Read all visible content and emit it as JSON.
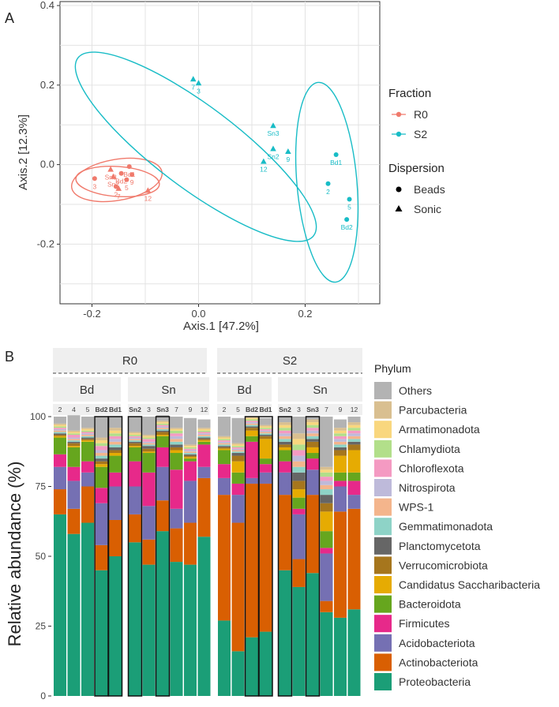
{
  "panelA": {
    "label": "A",
    "chart_data": {
      "type": "scatter",
      "title": "",
      "xlabel": "Axis.1   [47.2%]",
      "ylabel": "Axis.2   [12.3%]",
      "xlim": [
        -0.26,
        0.34
      ],
      "ylim": [
        -0.35,
        0.41
      ],
      "xticks": [
        -0.2,
        0.0,
        0.2
      ],
      "xtick_labels": [
        "-0.2",
        "0.0",
        "0.2"
      ],
      "yticks": [
        -0.2,
        0.0,
        0.2,
        0.4
      ],
      "ytick_labels": [
        "-0.2",
        "0.0",
        "0.2",
        "0.4"
      ],
      "grid": true,
      "colors": {
        "R0": "#F07A6C",
        "S2": "#18BCC6"
      },
      "points": [
        {
          "x": -0.195,
          "y": -0.035,
          "fraction": "R0",
          "dispersion": "Beads",
          "label": "3"
        },
        {
          "x": -0.155,
          "y": -0.055,
          "fraction": "R0",
          "dispersion": "Beads",
          "label": "2"
        },
        {
          "x": -0.13,
          "y": -0.005,
          "fraction": "R0",
          "dispersion": "Beads",
          "label": "Bd1"
        },
        {
          "x": -0.145,
          "y": -0.022,
          "fraction": "R0",
          "dispersion": "Beads",
          "label": "Bd2"
        },
        {
          "x": -0.135,
          "y": -0.038,
          "fraction": "R0",
          "dispersion": "Beads",
          "label": "5"
        },
        {
          "x": -0.125,
          "y": -0.025,
          "fraction": "R0",
          "dispersion": "Beads",
          "label": "9"
        },
        {
          "x": -0.165,
          "y": -0.012,
          "fraction": "R0",
          "dispersion": "Sonic",
          "label": "Sn3"
        },
        {
          "x": -0.16,
          "y": -0.03,
          "fraction": "R0",
          "dispersion": "Sonic",
          "label": "Sn2"
        },
        {
          "x": -0.15,
          "y": -0.06,
          "fraction": "R0",
          "dispersion": "Sonic",
          "label": "7"
        },
        {
          "x": -0.095,
          "y": -0.065,
          "fraction": "R0",
          "dispersion": "Sonic",
          "label": "12"
        },
        {
          "x": -0.01,
          "y": 0.215,
          "fraction": "S2",
          "dispersion": "Sonic",
          "label": "7"
        },
        {
          "x": 0.0,
          "y": 0.205,
          "fraction": "S2",
          "dispersion": "Sonic",
          "label": "3"
        },
        {
          "x": 0.14,
          "y": 0.098,
          "fraction": "S2",
          "dispersion": "Sonic",
          "label": "Sn3"
        },
        {
          "x": 0.14,
          "y": 0.04,
          "fraction": "S2",
          "dispersion": "Sonic",
          "label": "Sn2"
        },
        {
          "x": 0.168,
          "y": 0.033,
          "fraction": "S2",
          "dispersion": "Sonic",
          "label": "9"
        },
        {
          "x": 0.122,
          "y": 0.008,
          "fraction": "S2",
          "dispersion": "Sonic",
          "label": "12"
        },
        {
          "x": 0.258,
          "y": 0.025,
          "fraction": "S2",
          "dispersion": "Beads",
          "label": "Bd1"
        },
        {
          "x": 0.243,
          "y": -0.048,
          "fraction": "S2",
          "dispersion": "Beads",
          "label": "2"
        },
        {
          "x": 0.283,
          "y": -0.087,
          "fraction": "S2",
          "dispersion": "Beads",
          "label": "5"
        },
        {
          "x": 0.278,
          "y": -0.138,
          "fraction": "S2",
          "dispersion": "Beads",
          "label": "Bd2"
        }
      ],
      "ellipses": [
        {
          "group": "R0",
          "ellipse": "outer"
        },
        {
          "group": "R0",
          "ellipse": "inner"
        },
        {
          "group": "S2",
          "ellipse": "large"
        },
        {
          "group": "S2",
          "ellipse": "small"
        }
      ],
      "legend": {
        "placement": "right",
        "fraction_title": "Fraction",
        "fraction_items": [
          "R0",
          "S2"
        ],
        "dispersion_title": "Dispersion",
        "dispersion_items": [
          "Beads",
          "Sonic"
        ]
      }
    }
  },
  "panelB": {
    "label": "B",
    "chart_data": {
      "type": "bar",
      "stacked": true,
      "ylabel": "Relative abundance (%)",
      "ylim": [
        0,
        100
      ],
      "yticks": [
        0,
        25,
        50,
        75,
        100
      ],
      "facets_top": [
        "R0",
        "S2"
      ],
      "facets_sub": [
        {
          "fraction": "R0",
          "label": "Bd"
        },
        {
          "fraction": "R0",
          "label": "Sn"
        },
        {
          "fraction": "S2",
          "label": "Bd"
        },
        {
          "fraction": "S2",
          "label": "Sn"
        }
      ],
      "legend_title": "Phylum",
      "phyla": [
        "Proteobacteria",
        "Actinobacteriota",
        "Acidobacteriota",
        "Firmicutes",
        "Bacteroidota",
        "Candidatus Saccharibacteria",
        "Verrucomicrobiota",
        "Planctomycetota",
        "Gemmatimonadota",
        "WPS-1",
        "Nitrospirota",
        "Chloroflexota",
        "Chlamydiota",
        "Armatimonadota",
        "Parcubacteria",
        "Others"
      ],
      "phylum_colors": [
        "#1B9E77",
        "#D95F02",
        "#7570B3",
        "#E7298A",
        "#66A61E",
        "#E6AB02",
        "#A6761D",
        "#666666",
        "#8ED3C7",
        "#F4B58C",
        "#BEBADA",
        "#F49AC2",
        "#B2DF8A",
        "#F9D77E",
        "#D9BF90",
        "#B3B3B3"
      ],
      "legend_order": [
        "Others",
        "Parcubacteria",
        "Armatimonadota",
        "Chlamydiota",
        "Chloroflexota",
        "Nitrospirota",
        "WPS-1",
        "Gemmatimonadota",
        "Planctomycetota",
        "Verrucomicrobiota",
        "Candidatus Saccharibacteria",
        "Bacteroidota",
        "Firmicutes",
        "Acidobacteriota",
        "Actinobacteriota",
        "Proteobacteria"
      ],
      "samples": [
        {
          "fraction": "R0",
          "facet": 0,
          "label": "2",
          "boxed": false,
          "values": [
            65,
            9,
            8,
            4.5,
            6,
            0.5,
            0.5,
            0.5,
            0.5,
            0.5,
            0.5,
            0.5,
            0.5,
            0.5,
            0.5,
            2.5
          ]
        },
        {
          "fraction": "R0",
          "facet": 0,
          "label": "4",
          "boxed": false,
          "values": [
            58,
            9,
            10,
            5,
            7,
            0.5,
            1,
            0.5,
            0.5,
            0.5,
            0.5,
            1,
            0.5,
            0.5,
            0.5,
            5.5
          ]
        },
        {
          "fraction": "R0",
          "facet": 0,
          "label": "5",
          "boxed": false,
          "values": [
            62,
            13,
            5,
            4,
            7,
            0.5,
            0.5,
            0.5,
            0.5,
            0.5,
            0.5,
            0.5,
            0.5,
            0.5,
            0.5,
            4
          ]
        },
        {
          "fraction": "R0",
          "facet": 0,
          "label": "Bd2",
          "boxed": true,
          "values": [
            45,
            9,
            15,
            5.5,
            7.5,
            1,
            1,
            1,
            1,
            1,
            1,
            1.5,
            1,
            1,
            1,
            7.5
          ]
        },
        {
          "fraction": "R0",
          "facet": 0,
          "label": "Bd1",
          "boxed": true,
          "values": [
            50,
            13,
            12,
            5,
            6,
            1,
            1,
            1,
            1,
            1,
            1,
            1,
            1,
            1,
            1,
            4
          ]
        },
        {
          "fraction": "R0",
          "facet": 1,
          "label": "Sn2",
          "boxed": true,
          "values": [
            55,
            10,
            10,
            9,
            5,
            0.5,
            1,
            0.5,
            0.5,
            0.5,
            0.5,
            0.5,
            0.5,
            0.5,
            0.5,
            5.5
          ]
        },
        {
          "fraction": "R0",
          "facet": 1,
          "label": "3",
          "boxed": false,
          "values": [
            47,
            9,
            12,
            12,
            7,
            0.5,
            1,
            1,
            0.5,
            0.5,
            0.5,
            1,
            0.5,
            0.5,
            0.5,
            6.5
          ]
        },
        {
          "fraction": "R0",
          "facet": 1,
          "label": "Sn3",
          "boxed": true,
          "values": [
            59,
            11,
            12,
            7,
            4,
            0.5,
            1,
            0.5,
            0.5,
            0.5,
            0.5,
            0.5,
            0.5,
            0.5,
            0.5,
            2
          ]
        },
        {
          "fraction": "R0",
          "facet": 1,
          "label": "7",
          "boxed": false,
          "values": [
            48,
            12,
            7,
            14,
            6,
            1,
            1,
            1,
            1,
            1,
            1,
            1,
            1,
            0.5,
            0.5,
            4
          ]
        },
        {
          "fraction": "R0",
          "facet": 1,
          "label": "9",
          "boxed": false,
          "values": [
            47,
            15,
            15,
            7,
            1,
            0.5,
            0.5,
            0.5,
            0.5,
            0.5,
            0.5,
            0.5,
            0.5,
            0.5,
            0.5,
            9.5
          ]
        },
        {
          "fraction": "R0",
          "facet": 1,
          "label": "12",
          "boxed": false,
          "values": [
            57,
            21,
            4,
            8,
            1,
            0.5,
            0.5,
            0.5,
            0.5,
            0.5,
            0.5,
            0.5,
            0.5,
            0.5,
            0.5,
            3
          ]
        },
        {
          "fraction": "S2",
          "facet": 2,
          "label": "2",
          "boxed": false,
          "values": [
            27,
            45,
            6,
            5,
            5,
            0.5,
            0.5,
            0.5,
            0.5,
            0.5,
            0.5,
            0.5,
            0.5,
            0.5,
            0.5,
            7
          ]
        },
        {
          "fraction": "S2",
          "facet": 2,
          "label": "5",
          "boxed": false,
          "values": [
            16,
            46,
            10,
            4,
            4,
            4,
            2,
            1,
            0.5,
            0.5,
            0.5,
            0.5,
            0.5,
            0.5,
            0.5,
            9
          ]
        },
        {
          "fraction": "S2",
          "facet": 2,
          "label": "Bd2",
          "boxed": true,
          "values": [
            21,
            55,
            2,
            13,
            2,
            2,
            1,
            0.5,
            0.5,
            0.5,
            0.5,
            0.5,
            0.5,
            0.5,
            0.5,
            0
          ]
        },
        {
          "fraction": "S2",
          "facet": 2,
          "label": "Bd1",
          "boxed": true,
          "values": [
            23,
            53,
            4,
            3,
            2,
            7,
            1,
            0.5,
            0.5,
            0.5,
            0.5,
            0.5,
            0.5,
            0.5,
            0.5,
            2.5
          ]
        },
        {
          "fraction": "S2",
          "facet": 3,
          "label": "Sn2",
          "boxed": true,
          "values": [
            45,
            27,
            8,
            4,
            4,
            1,
            1,
            1,
            1,
            1,
            1,
            1,
            1,
            1,
            1,
            2
          ]
        },
        {
          "fraction": "S2",
          "facet": 3,
          "label": "3",
          "boxed": false,
          "values": [
            39,
            10,
            16,
            2,
            4,
            3,
            3,
            3,
            2,
            2,
            2,
            2,
            2,
            2,
            2,
            6
          ]
        },
        {
          "fraction": "S2",
          "facet": 3,
          "label": "Sn3",
          "boxed": true,
          "values": [
            44,
            28,
            9,
            4,
            2,
            2,
            2,
            1,
            1,
            1,
            1,
            1,
            1,
            1,
            1,
            1
          ]
        },
        {
          "fraction": "S2",
          "facet": 3,
          "label": "7",
          "boxed": false,
          "values": [
            30,
            4,
            17,
            2,
            6,
            7,
            3,
            3,
            2,
            1.5,
            1.5,
            1.5,
            1.5,
            1,
            1,
            18
          ]
        },
        {
          "fraction": "S2",
          "facet": 3,
          "label": "9",
          "boxed": false,
          "values": [
            28,
            38,
            9,
            2,
            3,
            6,
            2,
            1,
            1,
            1,
            1,
            1,
            1,
            1,
            1,
            3
          ]
        },
        {
          "fraction": "S2",
          "facet": 3,
          "label": "12",
          "boxed": false,
          "values": [
            31,
            36,
            5,
            5,
            3,
            8,
            2,
            1,
            1,
            1,
            1,
            1,
            1,
            1,
            1,
            2
          ]
        }
      ]
    }
  }
}
